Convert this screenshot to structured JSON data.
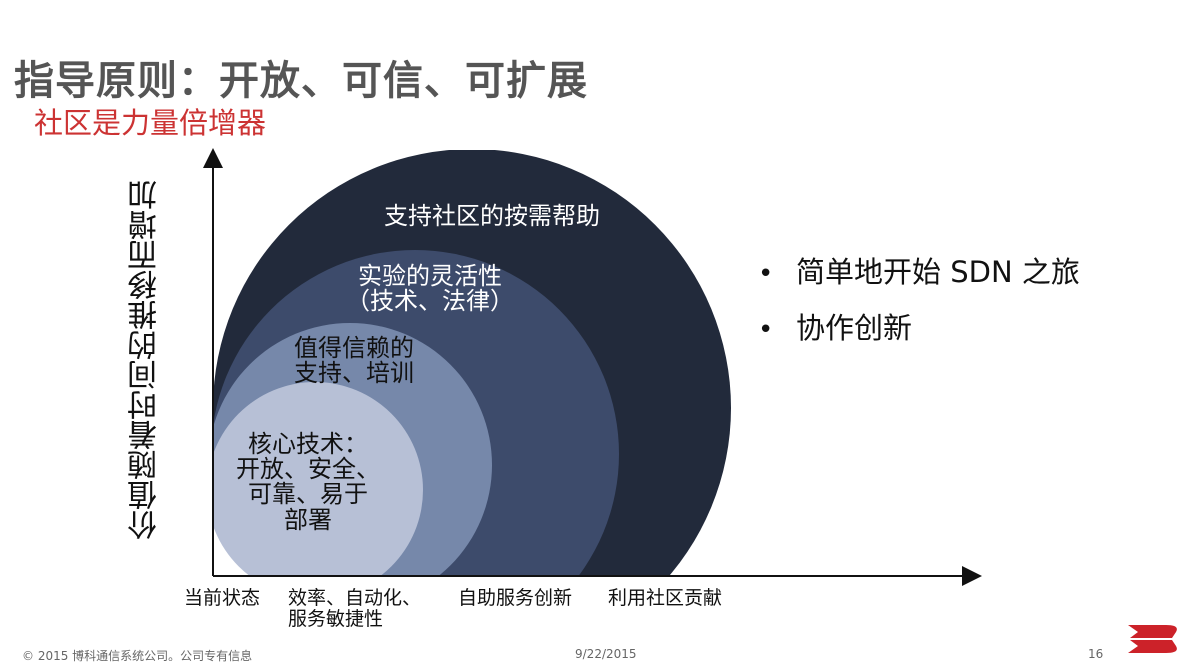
{
  "title": "指导原则：开放、可信、可扩展",
  "subtitle": "社区是力量倍增器",
  "y_axis_label": "价值随着时间的推移而增加",
  "arcs": [
    {
      "lines": [
        "支持社区的按需帮助"
      ],
      "color": "#222a3b"
    },
    {
      "lines": [
        "实验的灵活性",
        "（技术、法律）"
      ],
      "color": "#3d4b6b"
    },
    {
      "lines": [
        "值得信赖的",
        "支持、培训"
      ],
      "color": "#7688aa"
    },
    {
      "lines": [
        "核心技术：",
        "开放、安全、",
        "可靠、易于",
        "部署"
      ],
      "color": "#b7c0d6"
    }
  ],
  "x_ticks": [
    {
      "lines": [
        "当前状态"
      ]
    },
    {
      "lines": [
        "效率、自动化、",
        "服务敏捷性"
      ]
    },
    {
      "lines": [
        "自助服务创新"
      ]
    },
    {
      "lines": [
        "利用社区贡献"
      ]
    }
  ],
  "bullets": [
    {
      "marker": "•",
      "text": "简单地开始 SDN 之旅"
    },
    {
      "marker": "•",
      "text": "协作创新"
    }
  ],
  "footer": {
    "copyright": "© 2015 博科通信系统公司。公司专有信息",
    "date": "9/22/2015",
    "page": "16"
  },
  "logo_icon": "brocade-b-logo-icon",
  "brand_color": "#cc2229"
}
